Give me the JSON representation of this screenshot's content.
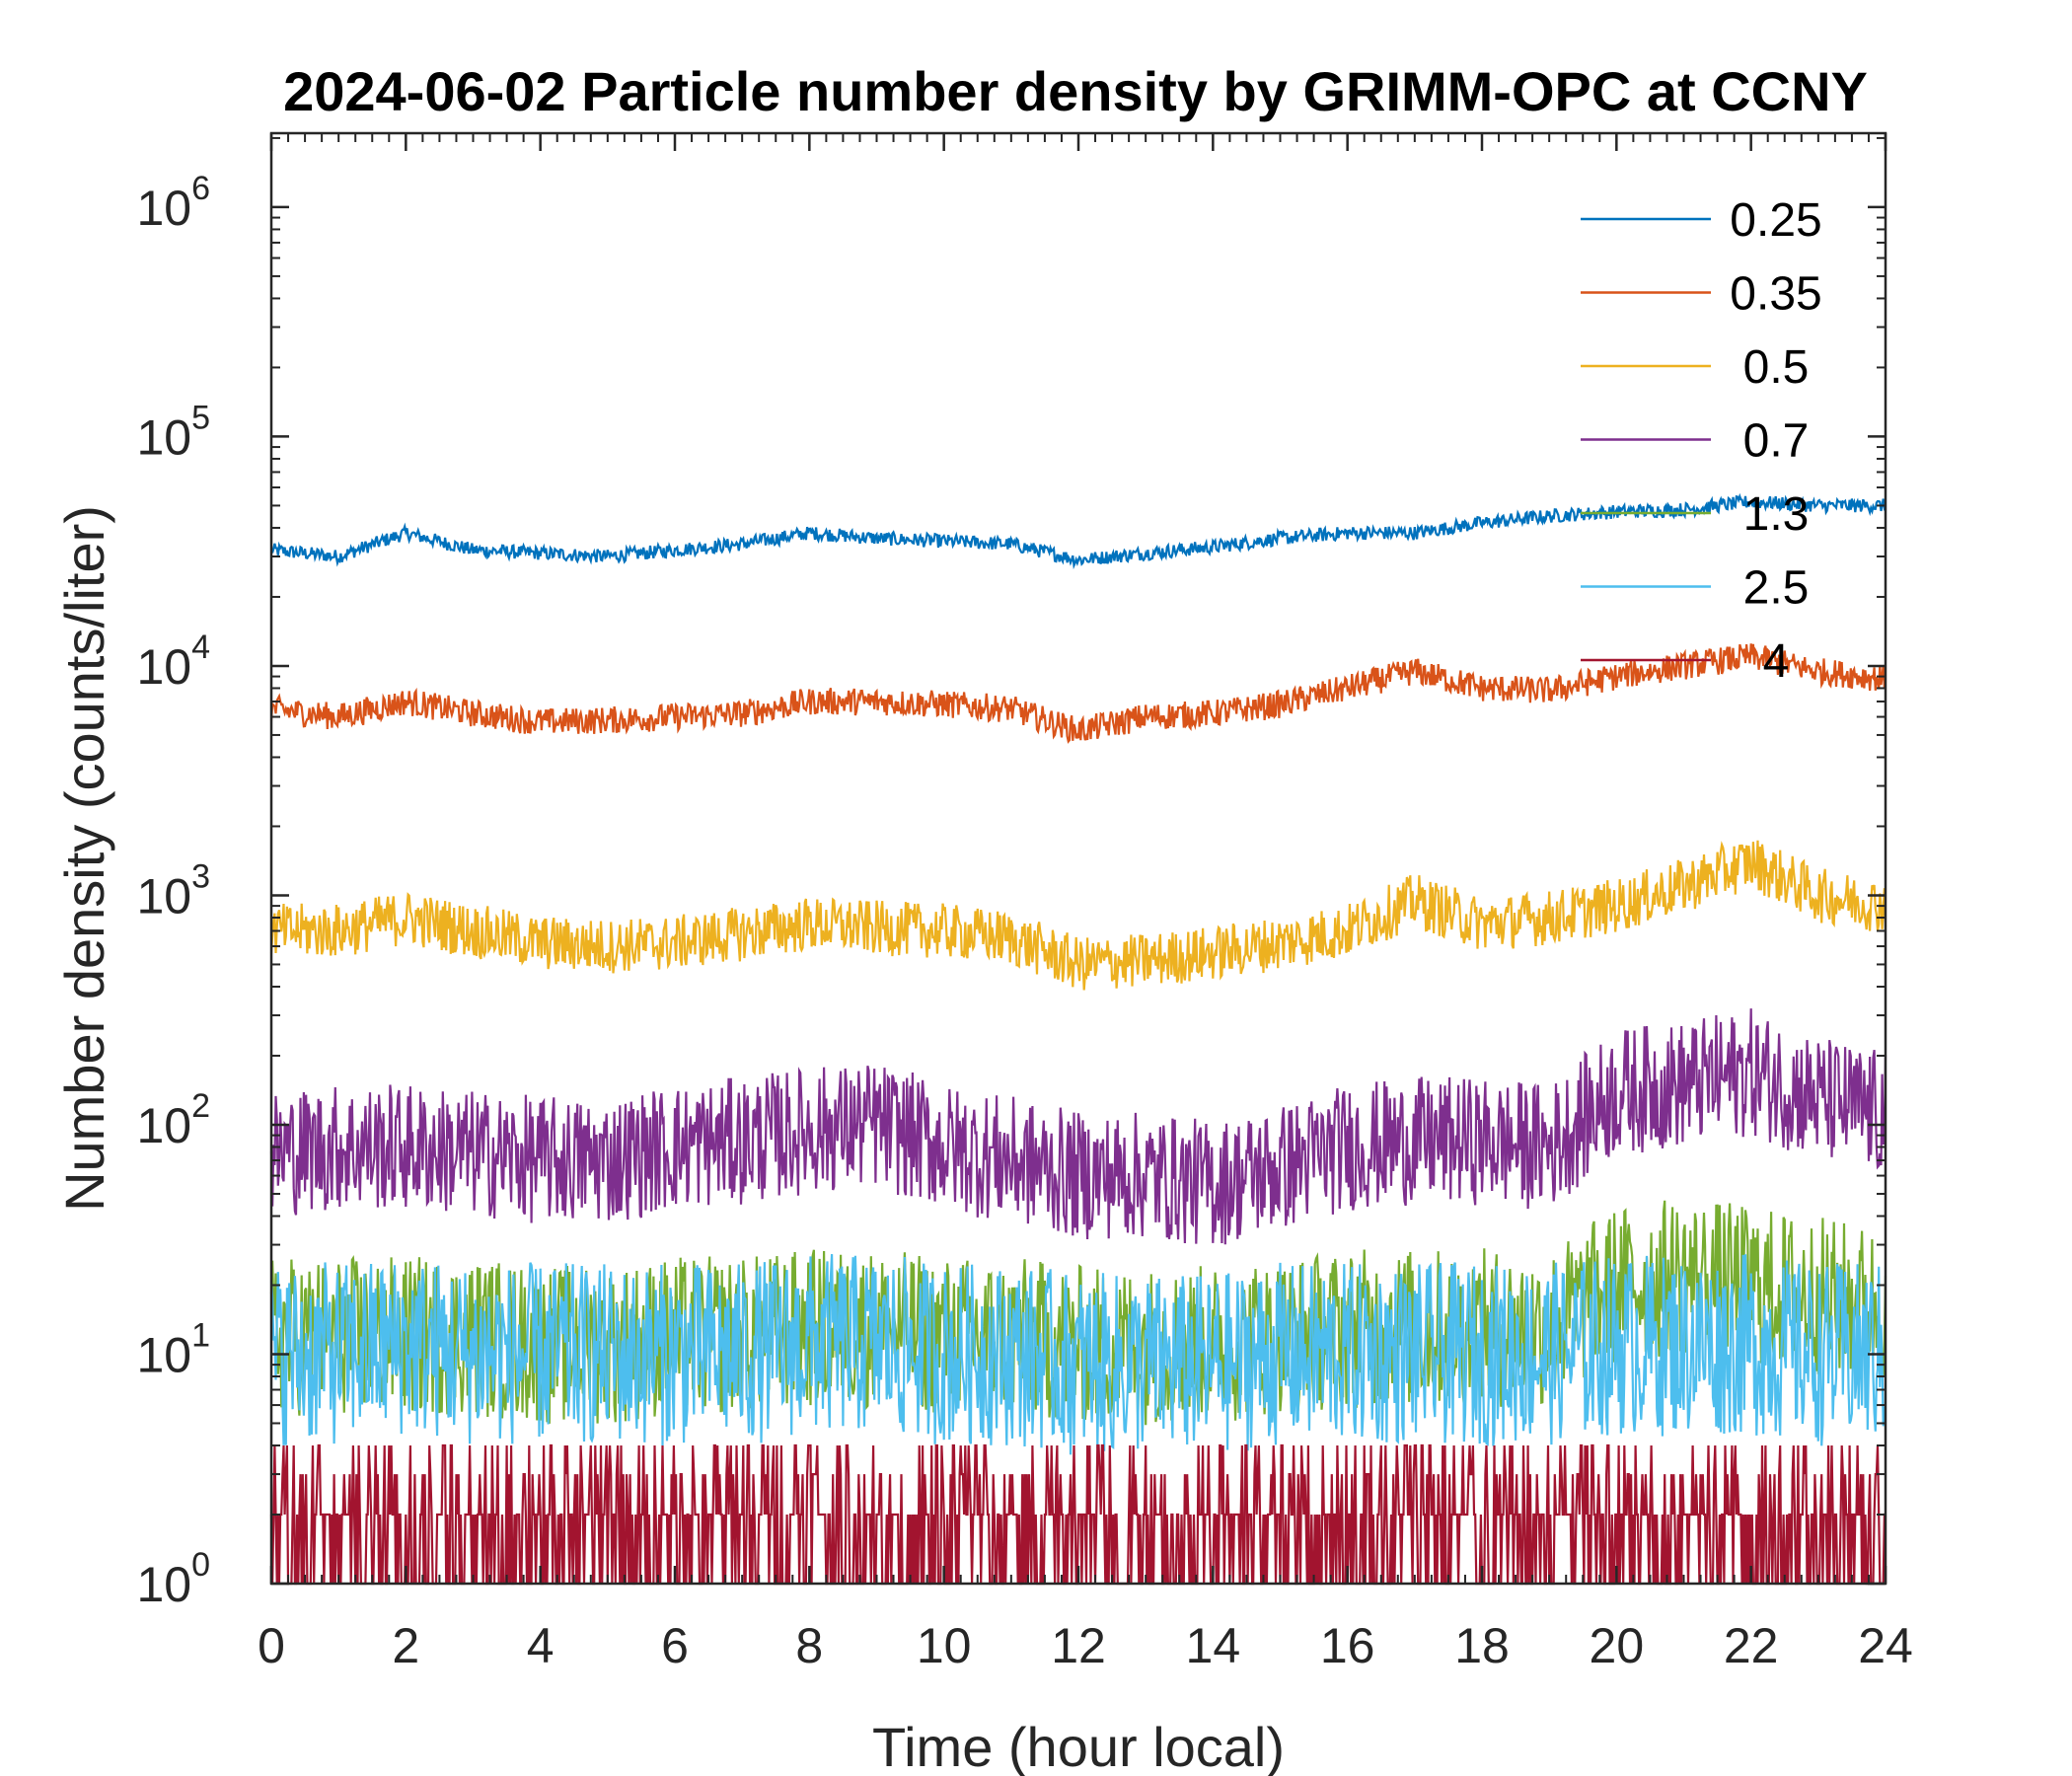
{
  "chart_data": {
    "type": "line",
    "title": "2024-06-02 Particle number density by GRIMM-OPC at CCNY",
    "xlabel": "Time (hour local)",
    "ylabel": "Number density (counts/liter)",
    "xlim": [
      0,
      24
    ],
    "ylim": [
      1,
      2100000
    ],
    "yscale": "log",
    "xticks": [
      0,
      2,
      4,
      6,
      8,
      10,
      12,
      14,
      16,
      18,
      20,
      22,
      24
    ],
    "yticks": [
      {
        "exp": "0",
        "v": 1
      },
      {
        "exp": "1",
        "v": 10
      },
      {
        "exp": "2",
        "v": 100
      },
      {
        "exp": "3",
        "v": 1000
      },
      {
        "exp": "4",
        "v": 10000
      },
      {
        "exp": "5",
        "v": 100000
      },
      {
        "exp": "6",
        "v": 1000000
      }
    ],
    "legend_position": "top-right",
    "x": [
      0,
      1,
      2,
      3,
      4,
      5,
      6,
      7,
      8,
      9,
      10,
      11,
      12,
      13,
      14,
      15,
      16,
      17,
      18,
      19,
      20,
      21,
      22,
      23,
      24
    ],
    "series": [
      {
        "name": "0.25",
        "color": "#0072BD",
        "values": [
          32000,
          30000,
          38000,
          32000,
          31000,
          30000,
          32000,
          34000,
          38000,
          36000,
          35000,
          34000,
          29000,
          31000,
          33000,
          36000,
          38000,
          38000,
          42000,
          45000,
          47000,
          48000,
          52000,
          50000,
          50000
        ]
      },
      {
        "name": "0.35",
        "color": "#D95319",
        "values": [
          6500,
          6000,
          7000,
          6200,
          5700,
          5800,
          6000,
          6200,
          7000,
          7000,
          6800,
          6500,
          5200,
          6000,
          6200,
          6800,
          8000,
          9500,
          8000,
          7800,
          9000,
          10000,
          11000,
          9500,
          8800
        ]
      },
      {
        "name": "0.5",
        "color": "#EDB120",
        "values": [
          700,
          700,
          800,
          700,
          620,
          600,
          620,
          680,
          750,
          720,
          700,
          650,
          500,
          520,
          560,
          620,
          700,
          950,
          750,
          800,
          900,
          1100,
          1400,
          1000,
          900
        ]
      },
      {
        "name": "0.7",
        "color": "#7E2F8E",
        "values": [
          75,
          80,
          80,
          75,
          70,
          70,
          80,
          85,
          95,
          100,
          80,
          70,
          60,
          60,
          55,
          65,
          80,
          85,
          85,
          80,
          140,
          150,
          170,
          130,
          110
        ]
      },
      {
        "name": "1.3",
        "color": "#77AC30",
        "values": [
          12,
          12,
          12,
          12,
          11,
          11,
          12,
          12,
          13,
          13,
          12,
          12,
          11,
          11,
          11,
          12,
          13,
          13,
          13,
          13,
          20,
          22,
          20,
          18,
          16
        ]
      },
      {
        "name": "2.5",
        "color": "#4DBEEE",
        "values": [
          10,
          10,
          11,
          10,
          10,
          10,
          10,
          10,
          11,
          11,
          10,
          10,
          9,
          9,
          9,
          10,
          10,
          10,
          10,
          10,
          11,
          11,
          11,
          10,
          10
        ]
      },
      {
        "name": "4",
        "color": "#A2142F",
        "values": [
          2,
          2,
          2,
          2,
          2,
          2,
          2,
          2,
          2,
          2,
          2,
          2,
          2,
          2,
          2,
          2,
          2,
          2,
          2,
          2,
          2,
          2,
          2,
          2,
          2
        ]
      }
    ]
  }
}
